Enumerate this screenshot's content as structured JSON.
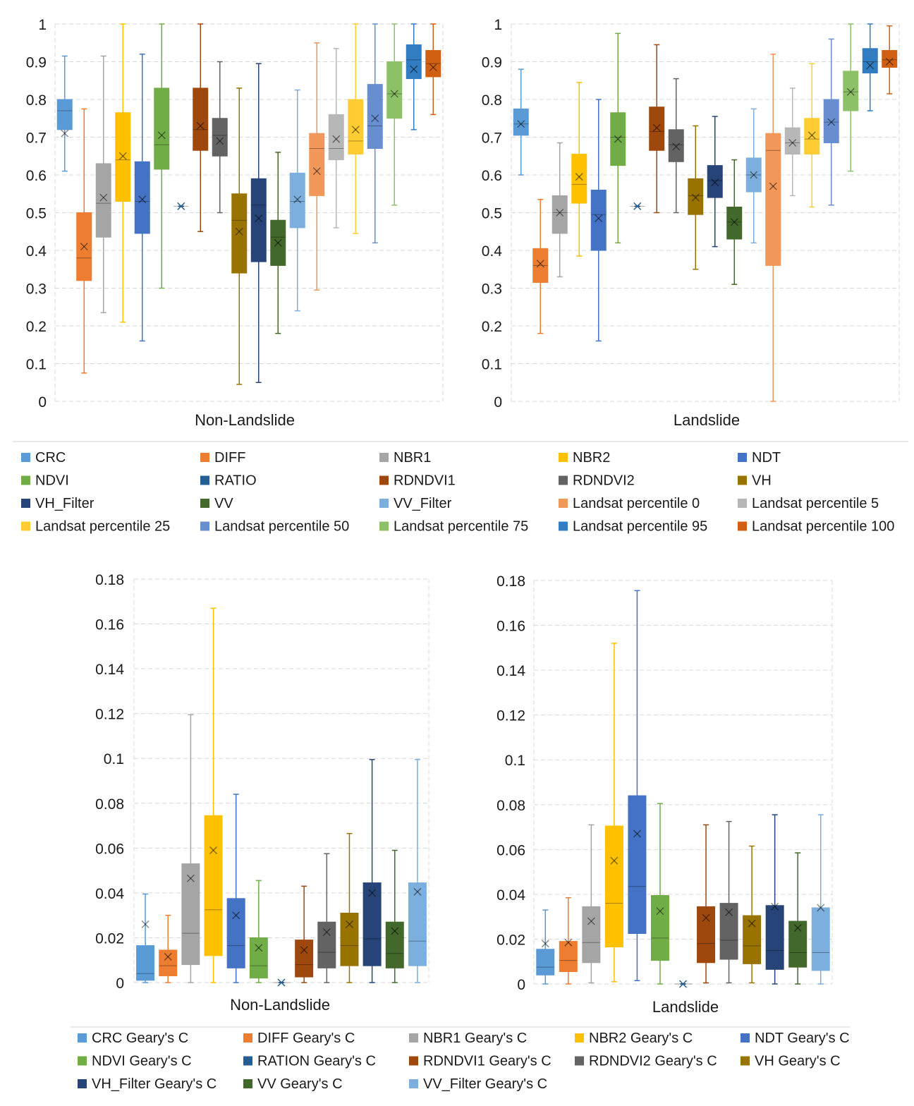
{
  "chart_data": [
    {
      "type": "box",
      "xlabel": "Non-Landslide",
      "ylim": [
        0,
        1
      ],
      "yticks": [
        "0",
        "0.1",
        "0.2",
        "0.3",
        "0.4",
        "0.5",
        "0.6",
        "0.7",
        "0.8",
        "0.9",
        "1"
      ],
      "series": [
        {
          "name": "CRC",
          "color": "#5b9bd5",
          "min": 0.61,
          "q1": 0.72,
          "median": 0.77,
          "q3": 0.8,
          "max": 0.915,
          "mean": 0.71
        },
        {
          "name": "DIFF",
          "color": "#ed7d31",
          "min": 0.075,
          "q1": 0.32,
          "median": 0.38,
          "q3": 0.5,
          "max": 0.775,
          "mean": 0.41
        },
        {
          "name": "NBR1",
          "color": "#a5a5a5",
          "min": 0.235,
          "q1": 0.435,
          "median": 0.525,
          "q3": 0.63,
          "max": 0.915,
          "mean": 0.54
        },
        {
          "name": "NBR2",
          "color": "#ffc000",
          "min": 0.21,
          "q1": 0.53,
          "median": 0.64,
          "q3": 0.765,
          "max": 1.0,
          "mean": 0.65
        },
        {
          "name": "NDT",
          "color": "#4472c4",
          "min": 0.16,
          "q1": 0.445,
          "median": 0.53,
          "q3": 0.635,
          "max": 0.92,
          "mean": 0.535
        },
        {
          "name": "NDVI",
          "color": "#70ad47",
          "min": 0.3,
          "q1": 0.615,
          "median": 0.68,
          "q3": 0.83,
          "max": 1.0,
          "mean": 0.705
        },
        {
          "name": "RATIO",
          "color": "#255e91",
          "min": 0.517,
          "q1": 0.517,
          "median": 0.517,
          "q3": 0.517,
          "max": 0.517,
          "mean": 0.517
        },
        {
          "name": "RDNDVI1",
          "color": "#9e480e",
          "min": 0.45,
          "q1": 0.665,
          "median": 0.72,
          "q3": 0.83,
          "max": 1.0,
          "mean": 0.73
        },
        {
          "name": "RDNDVI2",
          "color": "#636363",
          "min": 0.5,
          "q1": 0.65,
          "median": 0.705,
          "q3": 0.75,
          "max": 0.9,
          "mean": 0.69
        },
        {
          "name": "VH",
          "color": "#997300",
          "min": 0.045,
          "q1": 0.34,
          "median": 0.48,
          "q3": 0.55,
          "max": 0.83,
          "mean": 0.45
        },
        {
          "name": "VH_Filter",
          "color": "#264478",
          "min": 0.05,
          "q1": 0.37,
          "median": 0.52,
          "q3": 0.59,
          "max": 0.895,
          "mean": 0.485
        },
        {
          "name": "VV",
          "color": "#43682b",
          "min": 0.18,
          "q1": 0.36,
          "median": 0.435,
          "q3": 0.48,
          "max": 0.66,
          "mean": 0.42
        },
        {
          "name": "VV_Filter",
          "color": "#7cafdd",
          "min": 0.24,
          "q1": 0.46,
          "median": 0.53,
          "q3": 0.605,
          "max": 0.825,
          "mean": 0.535
        },
        {
          "name": "Landsat percentile 0",
          "color": "#f1975a",
          "min": 0.295,
          "q1": 0.545,
          "median": 0.67,
          "q3": 0.71,
          "max": 0.95,
          "mean": 0.61
        },
        {
          "name": "Landsat percentile 5",
          "color": "#b7b7b7",
          "min": 0.46,
          "q1": 0.64,
          "median": 0.67,
          "q3": 0.76,
          "max": 0.935,
          "mean": 0.695
        },
        {
          "name": "Landsat percentile 25",
          "color": "#ffcd33",
          "min": 0.445,
          "q1": 0.655,
          "median": 0.69,
          "q3": 0.8,
          "max": 1.0,
          "mean": 0.72
        },
        {
          "name": "Landsat percentile 50",
          "color": "#698ed0",
          "min": 0.42,
          "q1": 0.67,
          "median": 0.73,
          "q3": 0.84,
          "max": 1.0,
          "mean": 0.75
        },
        {
          "name": "Landsat percentile 75",
          "color": "#8cc168",
          "min": 0.52,
          "q1": 0.75,
          "median": 0.815,
          "q3": 0.9,
          "max": 1.0,
          "mean": 0.815
        },
        {
          "name": "Landsat percentile 95",
          "color": "#327dc2",
          "min": 0.72,
          "q1": 0.855,
          "median": 0.905,
          "q3": 0.945,
          "max": 1.0,
          "mean": 0.88
        },
        {
          "name": "Landsat percentile 100",
          "color": "#d26012",
          "min": 0.76,
          "q1": 0.86,
          "median": 0.895,
          "q3": 0.93,
          "max": 1.0,
          "mean": 0.885
        }
      ]
    },
    {
      "type": "box",
      "xlabel": "Landslide",
      "ylim": [
        0,
        1
      ],
      "yticks": [
        "0",
        "0.1",
        "0.2",
        "0.3",
        "0.4",
        "0.5",
        "0.6",
        "0.7",
        "0.8",
        "0.9",
        "1"
      ],
      "series": [
        {
          "name": "CRC",
          "color": "#5b9bd5",
          "min": 0.6,
          "q1": 0.705,
          "median": 0.735,
          "q3": 0.775,
          "max": 0.88,
          "mean": 0.735
        },
        {
          "name": "DIFF",
          "color": "#ed7d31",
          "min": 0.18,
          "q1": 0.315,
          "median": 0.36,
          "q3": 0.405,
          "max": 0.535,
          "mean": 0.365
        },
        {
          "name": "NBR1",
          "color": "#a5a5a5",
          "min": 0.33,
          "q1": 0.445,
          "median": 0.5,
          "q3": 0.545,
          "max": 0.685,
          "mean": 0.5
        },
        {
          "name": "NBR2",
          "color": "#ffc000",
          "min": 0.385,
          "q1": 0.525,
          "median": 0.575,
          "q3": 0.655,
          "max": 0.845,
          "mean": 0.595
        },
        {
          "name": "NDT",
          "color": "#4472c4",
          "min": 0.16,
          "q1": 0.4,
          "median": 0.495,
          "q3": 0.56,
          "max": 0.8,
          "mean": 0.485
        },
        {
          "name": "NDVI",
          "color": "#70ad47",
          "min": 0.42,
          "q1": 0.625,
          "median": 0.7,
          "q3": 0.765,
          "max": 0.975,
          "mean": 0.695
        },
        {
          "name": "RATIO",
          "color": "#255e91",
          "min": 0.517,
          "q1": 0.517,
          "median": 0.517,
          "q3": 0.517,
          "max": 0.517,
          "mean": 0.517
        },
        {
          "name": "RDNDVI1",
          "color": "#9e480e",
          "min": 0.5,
          "q1": 0.665,
          "median": 0.715,
          "q3": 0.78,
          "max": 0.945,
          "mean": 0.725
        },
        {
          "name": "RDNDVI2",
          "color": "#636363",
          "min": 0.5,
          "q1": 0.635,
          "median": 0.68,
          "q3": 0.72,
          "max": 0.855,
          "mean": 0.675
        },
        {
          "name": "VH",
          "color": "#997300",
          "min": 0.35,
          "q1": 0.495,
          "median": 0.545,
          "q3": 0.59,
          "max": 0.73,
          "mean": 0.54
        },
        {
          "name": "VH_Filter",
          "color": "#264478",
          "min": 0.41,
          "q1": 0.54,
          "median": 0.585,
          "q3": 0.625,
          "max": 0.755,
          "mean": 0.58
        },
        {
          "name": "VV",
          "color": "#43682b",
          "min": 0.31,
          "q1": 0.43,
          "median": 0.475,
          "q3": 0.515,
          "max": 0.64,
          "mean": 0.475
        },
        {
          "name": "VV_Filter",
          "color": "#7cafdd",
          "min": 0.42,
          "q1": 0.555,
          "median": 0.6,
          "q3": 0.645,
          "max": 0.775,
          "mean": 0.6
        },
        {
          "name": "Landsat percentile 0",
          "color": "#f1975a",
          "min": 0.0,
          "q1": 0.36,
          "median": 0.665,
          "q3": 0.71,
          "max": 0.92,
          "mean": 0.57
        },
        {
          "name": "Landsat percentile 5",
          "color": "#b7b7b7",
          "min": 0.545,
          "q1": 0.655,
          "median": 0.685,
          "q3": 0.725,
          "max": 0.83,
          "mean": 0.685
        },
        {
          "name": "Landsat percentile 25",
          "color": "#ffcd33",
          "min": 0.515,
          "q1": 0.655,
          "median": 0.695,
          "q3": 0.75,
          "max": 0.895,
          "mean": 0.705
        },
        {
          "name": "Landsat percentile 50",
          "color": "#698ed0",
          "min": 0.52,
          "q1": 0.685,
          "median": 0.74,
          "q3": 0.8,
          "max": 0.96,
          "mean": 0.74
        },
        {
          "name": "Landsat percentile 75",
          "color": "#8cc168",
          "min": 0.61,
          "q1": 0.77,
          "median": 0.82,
          "q3": 0.875,
          "max": 1.0,
          "mean": 0.82
        },
        {
          "name": "Landsat percentile 95",
          "color": "#327dc2",
          "min": 0.77,
          "q1": 0.87,
          "median": 0.9,
          "q3": 0.935,
          "max": 1.0,
          "mean": 0.89
        },
        {
          "name": "Landsat percentile 100",
          "color": "#d26012",
          "min": 0.815,
          "q1": 0.885,
          "median": 0.905,
          "q3": 0.93,
          "max": 0.995,
          "mean": 0.9
        }
      ]
    },
    {
      "type": "box",
      "xlabel": "Non-Landslide",
      "ylim": [
        0,
        0.18
      ],
      "yticks": [
        "0",
        "0.02",
        "0.04",
        "0.06",
        "0.08",
        "0.1",
        "0.12",
        "0.14",
        "0.16",
        "0.18"
      ],
      "series": [
        {
          "name": "CRC Geary's C",
          "color": "#5b9bd5",
          "min": 0.0,
          "q1": 0.001,
          "median": 0.004,
          "q3": 0.0165,
          "max": 0.0395,
          "mean": 0.026
        },
        {
          "name": "DIFF Geary's C",
          "color": "#ed7d31",
          "min": 0.0,
          "q1": 0.003,
          "median": 0.0075,
          "q3": 0.0145,
          "max": 0.03,
          "mean": 0.0115
        },
        {
          "name": "NBR1 Geary's C",
          "color": "#a5a5a5",
          "min": 0.0,
          "q1": 0.008,
          "median": 0.022,
          "q3": 0.053,
          "max": 0.1195,
          "mean": 0.0465
        },
        {
          "name": "NBR2 Geary's C",
          "color": "#ffc000",
          "min": 0.0,
          "q1": 0.012,
          "median": 0.0325,
          "q3": 0.0745,
          "max": 0.167,
          "mean": 0.059
        },
        {
          "name": "NDT Geary's C",
          "color": "#4472c4",
          "min": 0.0,
          "q1": 0.0065,
          "median": 0.0165,
          "q3": 0.0375,
          "max": 0.084,
          "mean": 0.03
        },
        {
          "name": "NDVI Geary's C",
          "color": "#70ad47",
          "min": 0.0,
          "q1": 0.002,
          "median": 0.0075,
          "q3": 0.02,
          "max": 0.0455,
          "mean": 0.0155
        },
        {
          "name": "RATION Geary's C",
          "color": "#255e91",
          "min": 0.0,
          "q1": 0.0,
          "median": 0.0,
          "q3": 0.0,
          "max": 0.0,
          "mean": 0.0
        },
        {
          "name": "RDNDVI1 Geary's C",
          "color": "#9e480e",
          "min": 0.0,
          "q1": 0.0025,
          "median": 0.008,
          "q3": 0.019,
          "max": 0.043,
          "mean": 0.0145
        },
        {
          "name": "RDNDVI2 Geary's C",
          "color": "#636363",
          "min": 0.0,
          "q1": 0.0065,
          "median": 0.0135,
          "q3": 0.027,
          "max": 0.0575,
          "mean": 0.0225
        },
        {
          "name": "VH Geary's C",
          "color": "#997300",
          "min": 0.0,
          "q1": 0.0075,
          "median": 0.0165,
          "q3": 0.031,
          "max": 0.0665,
          "mean": 0.026
        },
        {
          "name": "VH_Filter Geary's C",
          "color": "#264478",
          "min": 0.0,
          "q1": 0.0075,
          "median": 0.0195,
          "q3": 0.0445,
          "max": 0.0995,
          "mean": 0.04
        },
        {
          "name": "VV Geary's C",
          "color": "#43682b",
          "min": 0.0,
          "q1": 0.0065,
          "median": 0.013,
          "q3": 0.027,
          "max": 0.059,
          "mean": 0.023
        },
        {
          "name": "VV_Filter Geary's C",
          "color": "#7cafdd",
          "min": 0.0,
          "q1": 0.0075,
          "median": 0.0185,
          "q3": 0.0445,
          "max": 0.0995,
          "mean": 0.0405
        }
      ]
    },
    {
      "type": "box",
      "xlabel": "Landslide",
      "ylim": [
        0,
        0.18
      ],
      "yticks": [
        "0",
        "0.02",
        "0.04",
        "0.06",
        "0.08",
        "0.1",
        "0.12",
        "0.14",
        "0.16",
        "0.18"
      ],
      "series": [
        {
          "name": "CRC Geary's C",
          "color": "#5b9bd5",
          "min": 0.0,
          "q1": 0.004,
          "median": 0.0075,
          "q3": 0.0155,
          "max": 0.033,
          "mean": 0.018
        },
        {
          "name": "DIFF Geary's C",
          "color": "#ed7d31",
          "min": 0.0,
          "q1": 0.0055,
          "median": 0.0105,
          "q3": 0.019,
          "max": 0.0385,
          "mean": 0.0185
        },
        {
          "name": "NBR1 Geary's C",
          "color": "#a5a5a5",
          "min": 0.0005,
          "q1": 0.0095,
          "median": 0.0185,
          "q3": 0.0345,
          "max": 0.071,
          "mean": 0.028
        },
        {
          "name": "NBR2 Geary's C",
          "color": "#ffc000",
          "min": 0.001,
          "q1": 0.0165,
          "median": 0.036,
          "q3": 0.0705,
          "max": 0.152,
          "mean": 0.055
        },
        {
          "name": "NDT Geary's C",
          "color": "#4472c4",
          "min": 0.0015,
          "q1": 0.0225,
          "median": 0.0435,
          "q3": 0.084,
          "max": 0.1755,
          "mean": 0.067
        },
        {
          "name": "NDVI Geary's C",
          "color": "#70ad47",
          "min": 0.0,
          "q1": 0.0105,
          "median": 0.0205,
          "q3": 0.0395,
          "max": 0.0805,
          "mean": 0.0325
        },
        {
          "name": "RATION Geary's C",
          "color": "#255e91",
          "min": 0.0,
          "q1": 0.0,
          "median": 0.0,
          "q3": 0.0,
          "max": 0.0,
          "mean": 0.0
        },
        {
          "name": "RDNDVI1 Geary's C",
          "color": "#9e480e",
          "min": 0.0005,
          "q1": 0.0095,
          "median": 0.018,
          "q3": 0.0345,
          "max": 0.071,
          "mean": 0.0295
        },
        {
          "name": "RDNDVI2 Geary's C",
          "color": "#636363",
          "min": 0.0005,
          "q1": 0.011,
          "median": 0.0195,
          "q3": 0.036,
          "max": 0.0725,
          "mean": 0.032
        },
        {
          "name": "VH Geary's C",
          "color": "#997300",
          "min": 0.0005,
          "q1": 0.009,
          "median": 0.017,
          "q3": 0.0305,
          "max": 0.0615,
          "mean": 0.027
        },
        {
          "name": "VH_Filter Geary's C",
          "color": "#264478",
          "min": 0.0,
          "q1": 0.0065,
          "median": 0.015,
          "q3": 0.035,
          "max": 0.0755,
          "mean": 0.0345
        },
        {
          "name": "VV Geary's C",
          "color": "#43682b",
          "min": 0.0,
          "q1": 0.0075,
          "median": 0.014,
          "q3": 0.028,
          "max": 0.0585,
          "mean": 0.025
        },
        {
          "name": "VV_Filter Geary's C",
          "color": "#7cafdd",
          "min": 0.0,
          "q1": 0.006,
          "median": 0.014,
          "q3": 0.034,
          "max": 0.0755,
          "mean": 0.034
        }
      ]
    }
  ],
  "legends": {
    "top": [
      "CRC",
      "DIFF",
      "NBR1",
      "NBR2",
      "NDT",
      "NDVI",
      "RATIO",
      "RDNDVI1",
      "RDNDVI2",
      "VH",
      "VH_Filter",
      "VV",
      "VV_Filter",
      "Landsat percentile 0",
      "Landsat percentile 5",
      "Landsat percentile 25",
      "Landsat percentile 50",
      "Landsat percentile 75",
      "Landsat percentile 95",
      "Landsat percentile 100"
    ],
    "bottom": [
      "CRC Geary's C",
      "DIFF Geary's C",
      "NBR1 Geary's C",
      "NBR2 Geary's C",
      "NDT Geary's C",
      "NDVI Geary's C",
      "RATION Geary's C",
      "RDNDVI1 Geary's C",
      "RDNDVI2 Geary's C",
      "VH Geary's C",
      "VH_Filter Geary's C",
      "VV Geary's C",
      "VV_Filter Geary's C"
    ]
  }
}
